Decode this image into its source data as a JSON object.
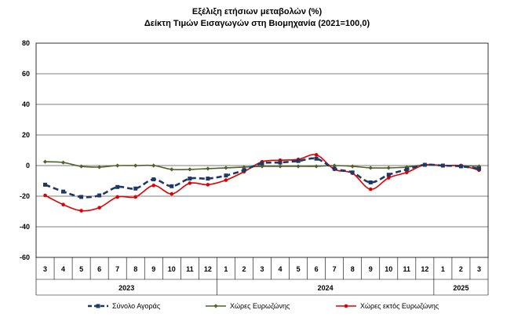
{
  "chart_data": {
    "type": "line",
    "title": "Εξέλιξη ετήσιων μεταβολών (%)",
    "subtitle": "Δείκτη Τιμών Εισαγωγών στη Βιομηχανία (2021=100,0)",
    "ylim": [
      -60,
      80
    ],
    "y_ticks": [
      "80",
      "60",
      "40",
      "20",
      "0",
      "-20",
      "-40",
      "-60"
    ],
    "grid": true,
    "legend_position": "bottom",
    "categories": [
      "3",
      "4",
      "5",
      "6",
      "7",
      "8",
      "9",
      "10",
      "11",
      "12",
      "1",
      "2",
      "3",
      "4",
      "5",
      "6",
      "7",
      "8",
      "9",
      "10",
      "11",
      "12",
      "1",
      "2",
      "3"
    ],
    "year_groups": [
      {
        "label": "2023",
        "start": 0,
        "end": 10
      },
      {
        "label": "2024",
        "start": 10,
        "end": 22
      },
      {
        "label": "2025",
        "start": 22,
        "end": 25
      }
    ],
    "series": [
      {
        "name": "Σύνολο Αγοράς",
        "color": "#1f3864",
        "style": "dashed-square",
        "values": [
          -12.5,
          -17,
          -20.5,
          -19.5,
          -14,
          -15,
          -9,
          -13.5,
          -8.5,
          -8.5,
          -6.5,
          -3,
          1.5,
          2,
          3,
          4.5,
          -2,
          -4.5,
          -11,
          -6,
          -2.5,
          0.5,
          0,
          -0.5,
          -2
        ]
      },
      {
        "name": "Χώρες Ευρωζώνης",
        "color": "#4f6228",
        "style": "solid-diamond",
        "values": [
          2.5,
          2,
          -0.5,
          -1,
          0,
          0,
          0,
          -2.5,
          -2.5,
          -2,
          -1.5,
          -1,
          -0.5,
          -0.5,
          -0.5,
          -0.5,
          0,
          -0.5,
          -1.5,
          -1.5,
          -1,
          0.5,
          0,
          0,
          -0.5
        ]
      },
      {
        "name": "Χώρες εκτός Ευρωζώνης",
        "color": "#e00000",
        "style": "solid-circle",
        "values": [
          -19.5,
          -25.5,
          -29.5,
          -27.5,
          -20.5,
          -20.5,
          -13,
          -18.5,
          -11.5,
          -12.5,
          -9.5,
          -4,
          2.5,
          3.5,
          4,
          7,
          -2.5,
          -5,
          -15.5,
          -8,
          -4.5,
          0.5,
          0,
          0,
          -3
        ]
      }
    ]
  }
}
